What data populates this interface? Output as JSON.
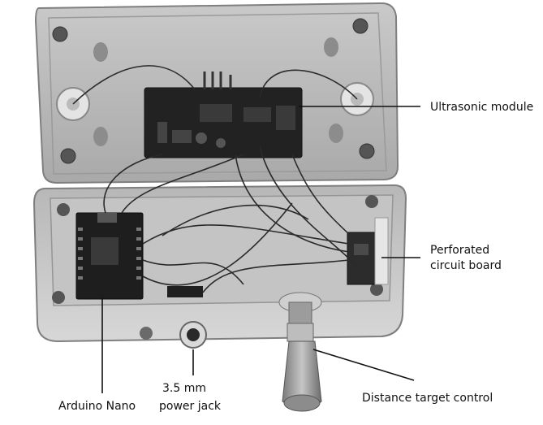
{
  "labels": {
    "ultrasonic": "Ultrasonic module",
    "perfboard_line1": "Perforated",
    "perfboard_line2": "circuit board",
    "arduino": "Arduino Nano",
    "jack_line1": "3.5 mm",
    "jack_line2": "power jack",
    "distance": "Distance target control"
  },
  "colors": {
    "enclosure": "#bdbdbd",
    "enclosure_edge": "#8a8a8a",
    "pcb": "#1f1f1f",
    "wire": "#2a2a2a",
    "knob": "#9a9a9a",
    "leader": "#111111"
  }
}
